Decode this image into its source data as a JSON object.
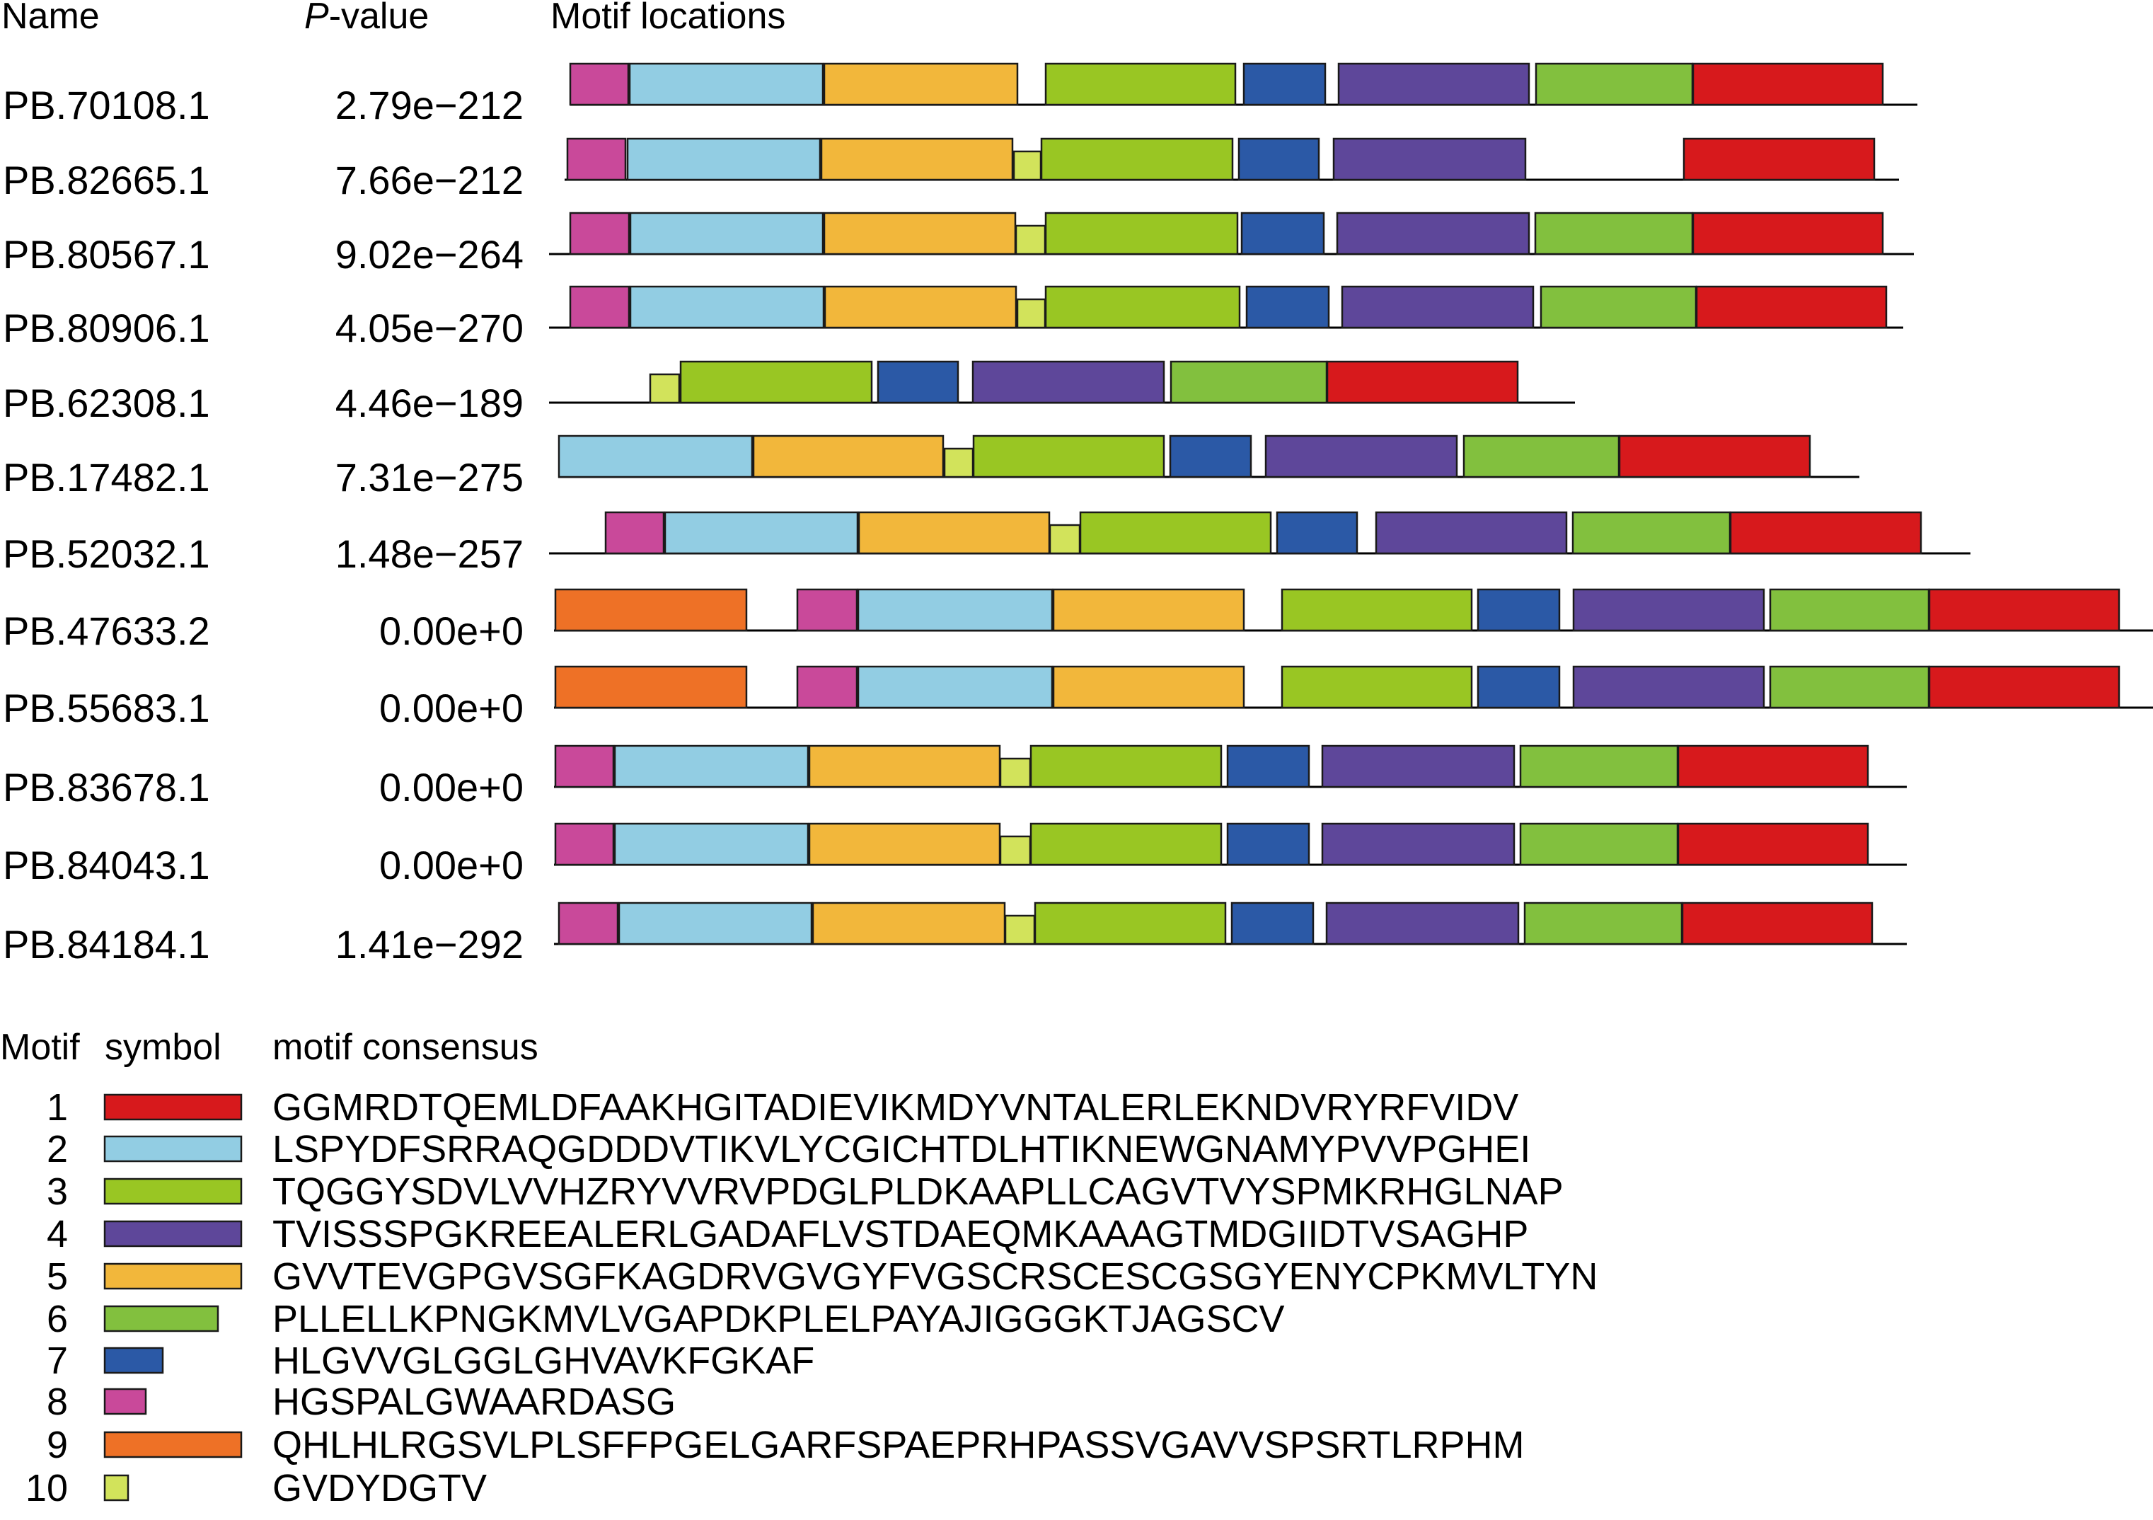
{
  "headers": {
    "name": "Name",
    "pvalue_italic": "P",
    "pvalue_rest": "-value",
    "locations": "Motif locations"
  },
  "legend": {
    "header_motif": "Motif",
    "header_symbol": "symbol",
    "header_consensus": "motif consensus",
    "motifs": [
      {
        "id": 1,
        "number": "1",
        "color": "#d7191c",
        "consensus": "GGMRDTQEMLDFAAKHGITADIEVIKMDYVNTALERLEKNDVRYRFVIDV"
      },
      {
        "id": 2,
        "number": "2",
        "color": "#92cde3",
        "consensus": "LSPYDFSRRAQGDDDVTIKVLYCGICHTDLHTIKNEWGNAMYPVVPGHEI"
      },
      {
        "id": 3,
        "number": "3",
        "color": "#99c623",
        "consensus": "TQGGYSDVLVVHZRYVVRVPDGLPLDKAAPLLCAGVTVYSPMKRHGLNAP"
      },
      {
        "id": 4,
        "number": "4",
        "color": "#5e479a",
        "consensus": "TVISSSPGKREEALERLGADAFLVSTDAEQMKAAAGTMDGIIDTVSAGHP"
      },
      {
        "id": 5,
        "number": "5",
        "color": "#f2b73b",
        "consensus": "GVVTEVGPGVSGFKAGDRVGVGYFVGSCRSCESCGSGYENYCPKMVLTYN"
      },
      {
        "id": 6,
        "number": "6",
        "color": "#82c03e",
        "consensus": "PLLELLKPNGKMVLVGAPDKPLELPAYAJIGGGKTJAGSCV"
      },
      {
        "id": 7,
        "number": "7",
        "color": "#2b59a6",
        "consensus": "HLGVVGLGGLGHVAVKFGKAF"
      },
      {
        "id": 8,
        "number": "8",
        "color": "#c9499a",
        "consensus": "HGSPALGWAARDASG"
      },
      {
        "id": 9,
        "number": "9",
        "color": "#ee7126",
        "consensus": "QHLHLRGSVLPLSFFPGELGARFSPAEPRHPASSVGAVVSPSRTLRPHM"
      },
      {
        "id": 10,
        "number": "10",
        "color": "#d2e35b",
        "consensus": "GVDYDGTV"
      }
    ]
  },
  "sequences": [
    {
      "name": "PB.70108.1",
      "pvalue": "2.79e−212",
      "motifs": [
        8,
        2,
        5,
        3,
        7,
        4,
        6,
        1
      ]
    },
    {
      "name": "PB.82665.1",
      "pvalue": "7.66e−212",
      "motifs": [
        8,
        2,
        5,
        10,
        3,
        7,
        4,
        1
      ]
    },
    {
      "name": "PB.80567.1",
      "pvalue": "9.02e−264",
      "motifs": [
        8,
        2,
        5,
        10,
        3,
        7,
        4,
        6,
        1
      ]
    },
    {
      "name": "PB.80906.1",
      "pvalue": "4.05e−270",
      "motifs": [
        8,
        2,
        5,
        10,
        3,
        7,
        4,
        6,
        1
      ]
    },
    {
      "name": "PB.62308.1",
      "pvalue": "4.46e−189",
      "motifs": [
        10,
        3,
        7,
        4,
        6,
        1
      ]
    },
    {
      "name": "PB.17482.1",
      "pvalue": "7.31e−275",
      "motifs": [
        2,
        5,
        10,
        3,
        7,
        4,
        6,
        1
      ]
    },
    {
      "name": "PB.52032.1",
      "pvalue": "1.48e−257",
      "motifs": [
        8,
        2,
        5,
        10,
        3,
        7,
        4,
        6,
        1
      ]
    },
    {
      "name": "PB.47633.2",
      "pvalue": "0.00e+0",
      "motifs": [
        9,
        8,
        2,
        5,
        3,
        7,
        4,
        6,
        1
      ]
    },
    {
      "name": "PB.55683.1",
      "pvalue": "0.00e+0",
      "motifs": [
        9,
        8,
        2,
        5,
        3,
        7,
        4,
        6,
        1
      ]
    },
    {
      "name": "PB.83678.1",
      "pvalue": "0.00e+0",
      "motifs": [
        8,
        2,
        5,
        10,
        3,
        7,
        4,
        6,
        1
      ]
    },
    {
      "name": "PB.84043.1",
      "pvalue": "0.00e+0",
      "motifs": [
        8,
        2,
        5,
        10,
        3,
        7,
        4,
        6,
        1
      ]
    },
    {
      "name": "PB.84184.1",
      "pvalue": "1.41e−292",
      "motifs": [
        8,
        2,
        5,
        10,
        3,
        7,
        4,
        6,
        1
      ]
    }
  ]
}
